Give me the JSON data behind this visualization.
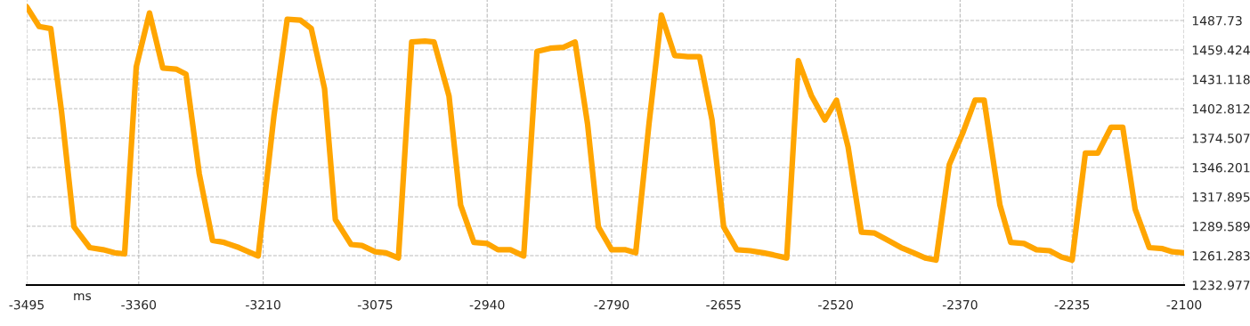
{
  "chart_data": {
    "type": "line",
    "xlabel": "ms",
    "x": [
      -3495,
      -3480,
      -3466,
      -3453,
      -3438,
      -3419,
      -3403,
      -3389,
      -3377,
      -3363,
      -3347,
      -3331,
      -3315,
      -3303,
      -3287,
      -3271,
      -3257,
      -3239,
      -3216,
      -3197,
      -3181,
      -3165,
      -3152,
      -3136,
      -3123,
      -3104,
      -3091,
      -3075,
      -3062,
      -3047,
      -3031,
      -3015,
      -3004,
      -2986,
      -2972,
      -2956,
      -2940,
      -2927,
      -2912,
      -2896,
      -2880,
      -2864,
      -2848,
      -2834,
      -2819,
      -2806,
      -2790,
      -2774,
      -2761,
      -2745,
      -2730,
      -2714,
      -2698,
      -2684,
      -2669,
      -2655,
      -2639,
      -2623,
      -2607,
      -2595,
      -2579,
      -2565,
      -2549,
      -2533,
      -2519,
      -2505,
      -2489,
      -2473,
      -2457,
      -2441,
      -2426,
      -2412,
      -2399,
      -2383,
      -2367,
      -2352,
      -2341,
      -2322,
      -2309,
      -2293,
      -2278,
      -2262,
      -2248,
      -2235,
      -2219,
      -2204,
      -2188,
      -2174,
      -2159,
      -2142,
      -2126,
      -2114,
      -2100
    ],
    "series": [
      {
        "color": "#ffa500",
        "values": [
          1501,
          1482,
          1480,
          1400,
          1289,
          1269,
          1267,
          1264,
          1263,
          1443,
          1495,
          1442,
          1441,
          1436,
          1340,
          1276,
          1274,
          1269,
          1261,
          1396,
          1489,
          1488,
          1480,
          1422,
          1296,
          1272,
          1271,
          1265,
          1264,
          1259,
          1467,
          1468,
          1467,
          1415,
          1310,
          1274,
          1273,
          1267,
          1267,
          1261,
          1458,
          1461,
          1462,
          1467,
          1388,
          1289,
          1267,
          1267,
          1264,
          1388,
          1493,
          1454,
          1453,
          1453,
          1392,
          1289,
          1267,
          1266,
          1264,
          1262,
          1259,
          1449,
          1415,
          1392,
          1411,
          1366,
          1284,
          1283,
          1276,
          1269,
          1264,
          1259,
          1257,
          1349,
          1379,
          1411,
          1411,
          1310,
          1274,
          1273,
          1267,
          1266,
          1260,
          1257,
          1360,
          1360,
          1385,
          1385,
          1306,
          1269,
          1268,
          1265,
          1264
        ]
      }
    ],
    "xlim": [
      -3495,
      -2100
    ],
    "xticks": [
      -3495,
      -3360,
      -3210,
      -3075,
      -2940,
      -2790,
      -2655,
      -2520,
      -2370,
      -2235,
      -2100
    ],
    "ylim": [
      1232.977,
      1507.5
    ],
    "yticks": [
      1232.977,
      1261.283,
      1289.589,
      1317.895,
      1346.201,
      1374.507,
      1402.812,
      1431.118,
      1459.424,
      1487.73
    ],
    "grid": true,
    "line_style": "solid",
    "marker": "none"
  }
}
